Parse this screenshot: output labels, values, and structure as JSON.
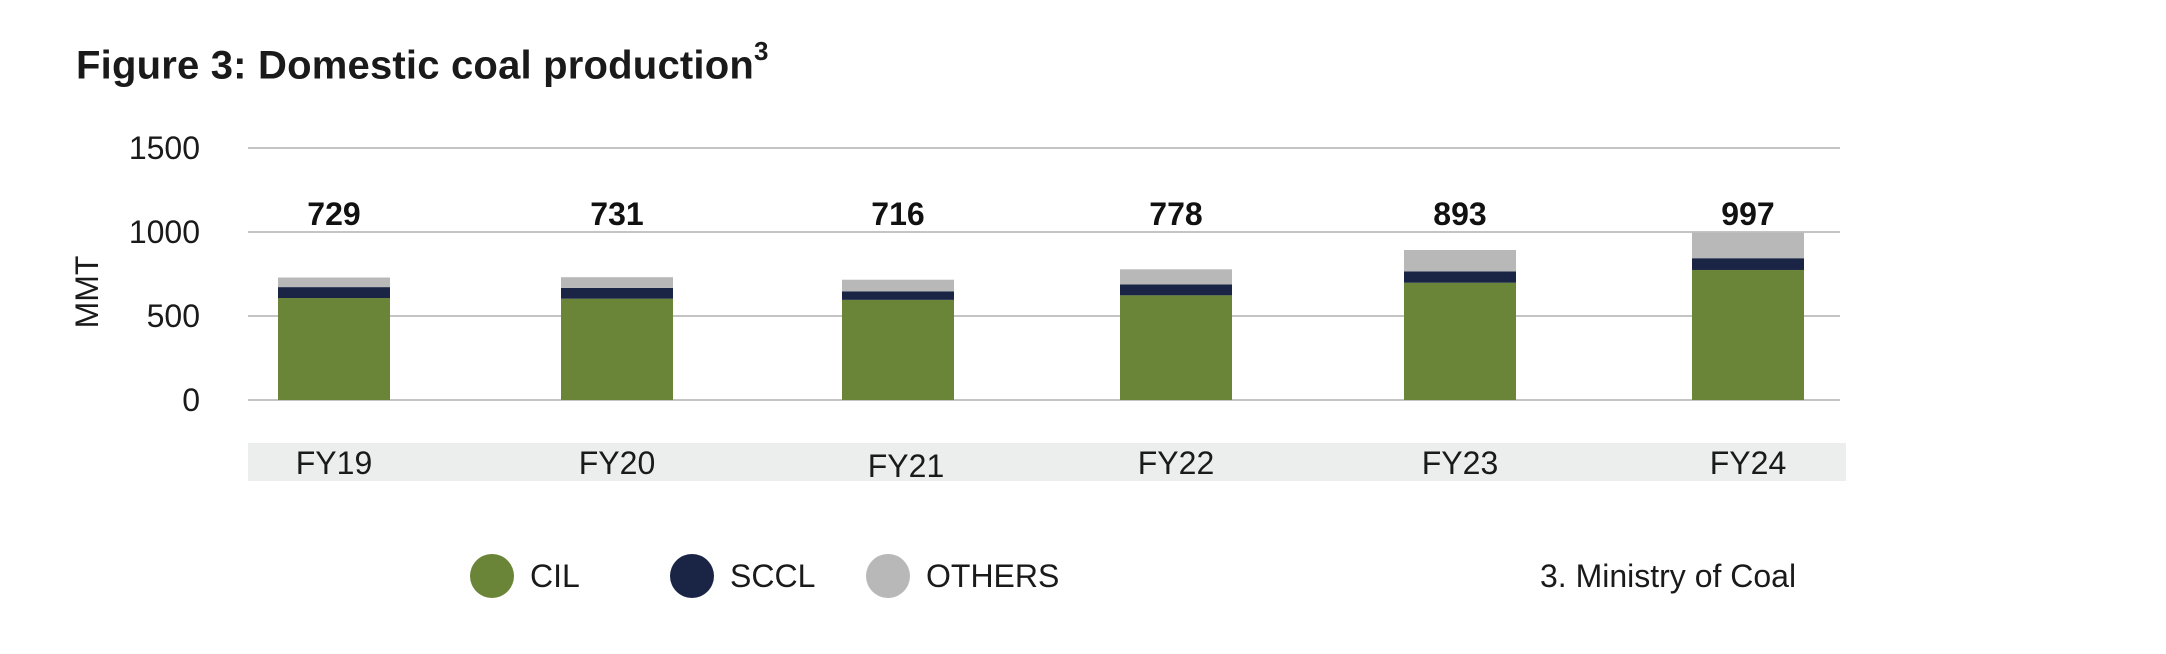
{
  "title": "Figure 3: Domestic coal production",
  "title_superscript": "3",
  "source_note": "3. Ministry of Coal",
  "chart_data": {
    "type": "bar",
    "stacked": true,
    "categories": [
      "FY19",
      "FY20",
      "FY21",
      "FY22",
      "FY23",
      "FY24"
    ],
    "series": [
      {
        "name": "CIL",
        "color": "#6a8438",
        "values": [
          607,
          603,
          596,
          623,
          698,
          774
        ]
      },
      {
        "name": "SCCL",
        "color": "#1a2545",
        "values": [
          65,
          64,
          51,
          65,
          67,
          70
        ]
      },
      {
        "name": "OTHERS",
        "color": "#b8b8b8",
        "values": [
          57,
          64,
          69,
          90,
          128,
          153
        ]
      }
    ],
    "totals": [
      729,
      731,
      716,
      778,
      893,
      997
    ],
    "ylabel": "MMT",
    "yticks": [
      0,
      500,
      1000,
      1500
    ],
    "ylim": [
      0,
      1500
    ],
    "grid": true,
    "legend_position": "bottom"
  }
}
